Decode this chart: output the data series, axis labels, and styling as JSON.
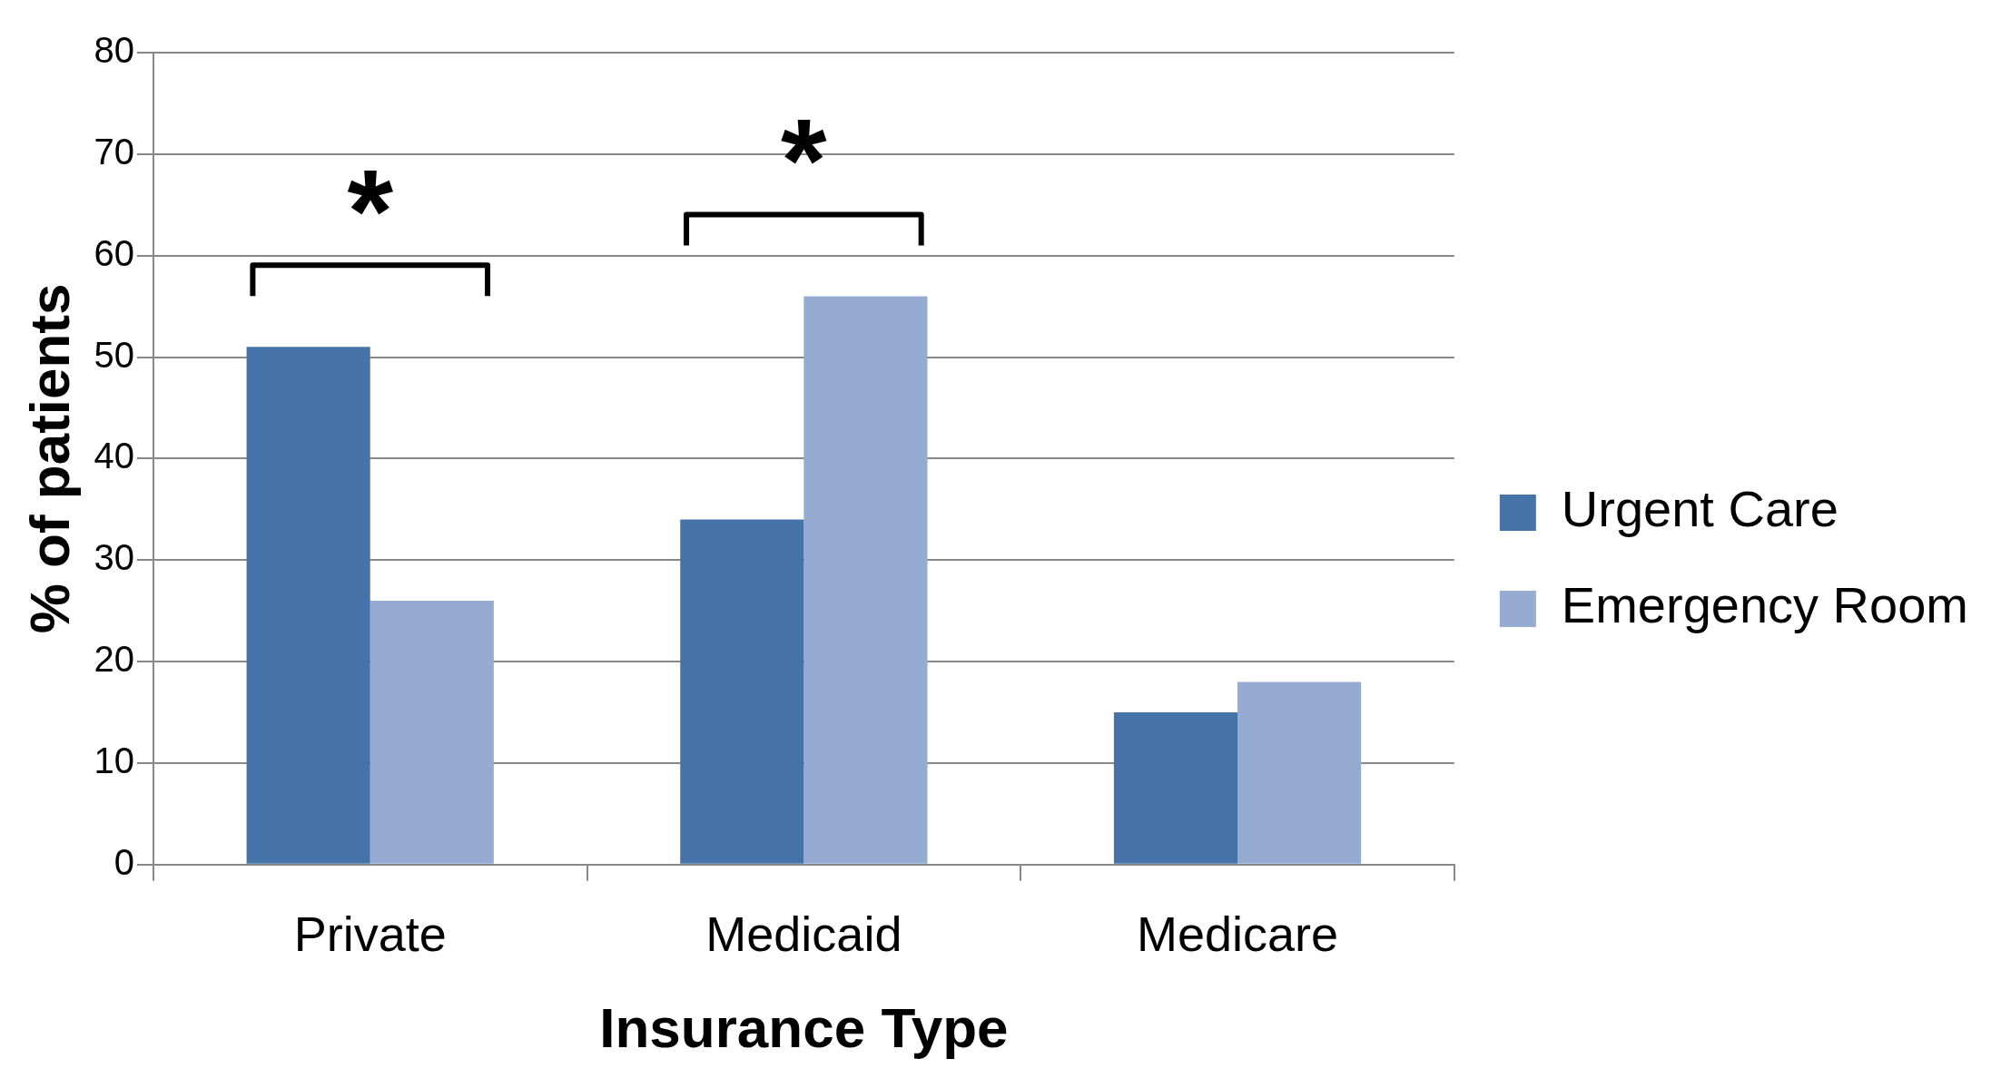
{
  "chart_data": {
    "type": "bar",
    "xlabel": "Insurance Type",
    "ylabel": "% of patients",
    "categories": [
      "Private",
      "Medicaid",
      "Medicare"
    ],
    "series": [
      {
        "name": "Urgent Care",
        "color": "#4673a7",
        "values": [
          51,
          34,
          15
        ]
      },
      {
        "name": "Emergency Room",
        "color": "#95abd1",
        "values": [
          26,
          56,
          18
        ]
      }
    ],
    "ylim": [
      0,
      80
    ],
    "yticks": [
      0,
      10,
      20,
      30,
      40,
      50,
      60,
      70,
      80
    ],
    "grid": "y",
    "legend": "right",
    "annotations": [
      "*",
      "*"
    ]
  }
}
